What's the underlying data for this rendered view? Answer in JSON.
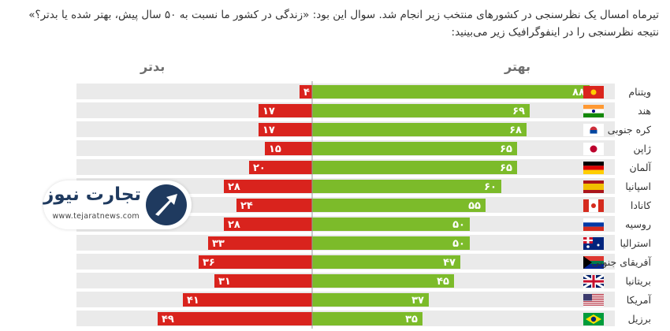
{
  "intro_text": "تیرماه امسال یک نظرسنجی در کشورهای منتخب زیر انجام شد. سوال این بود: «زندگی در کشور ما نسبت به ۵۰ سال پیش، بهتر شده یا بدتر؟» نتیجه نظرسنجی را در اینفوگرافیک زیر می‌بینید:",
  "headers": {
    "better": "بهتر",
    "worse": "بدتر"
  },
  "logo": {
    "name": "تجارت نیوز",
    "url": "www.tejaratnews.com"
  },
  "colors": {
    "better": "#7cbb2a",
    "worse": "#d9231d",
    "row_band": "#eaeaea"
  },
  "chart_data": {
    "type": "bar",
    "orientation": "diverging-horizontal",
    "categories": [
      "ویتنام",
      "هند",
      "کره جنوبی",
      "ژاپن",
      "آلمان",
      "اسپانیا",
      "کانادا",
      "روسیه",
      "استرالیا",
      "آفریقای جنوبی",
      "بریتانیا",
      "آمریکا",
      "برزیل"
    ],
    "value_labels_better": [
      "۸۸",
      "۶۹",
      "۶۸",
      "۶۵",
      "۶۵",
      "۶۰",
      "۵۵",
      "۵۰",
      "۵۰",
      "۴۷",
      "۴۵",
      "۳۷",
      "۳۵"
    ],
    "value_labels_worse": [
      "۴",
      "۱۷",
      "۱۷",
      "۱۵",
      "۲۰",
      "۲۸",
      "۲۴",
      "۲۸",
      "۳۳",
      "۳۶",
      "۳۱",
      "۴۱",
      "۴۹"
    ],
    "series": [
      {
        "name": "بهتر",
        "values": [
          88,
          69,
          68,
          65,
          65,
          60,
          55,
          50,
          50,
          47,
          45,
          37,
          35
        ]
      },
      {
        "name": "بدتر",
        "values": [
          4,
          17,
          17,
          15,
          20,
          28,
          24,
          28,
          33,
          36,
          31,
          41,
          49
        ]
      }
    ],
    "flags": [
      "vietnam-flag",
      "india-flag",
      "south-korea-flag",
      "japan-flag",
      "germany-flag",
      "spain-flag",
      "canada-flag",
      "russia-flag",
      "australia-flag",
      "south-africa-flag",
      "uk-flag",
      "usa-flag",
      "brazil-flag"
    ],
    "xlim": [
      -100,
      100
    ],
    "grid": false
  }
}
